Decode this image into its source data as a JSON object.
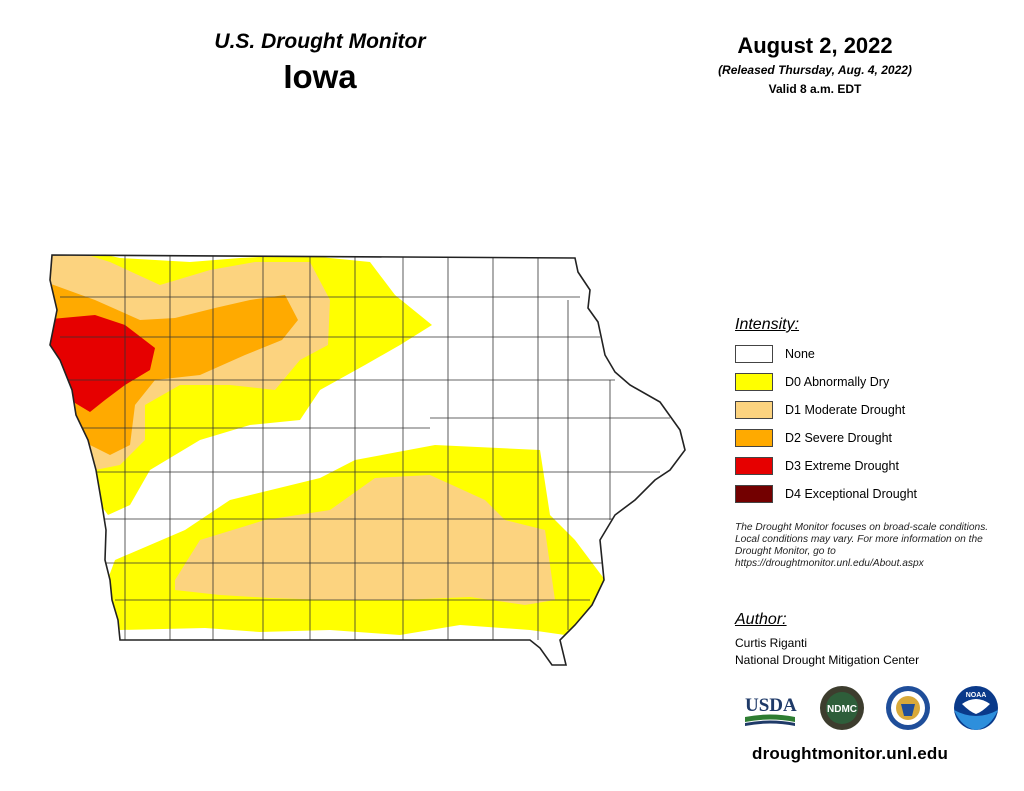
{
  "header": {
    "monitor_title": "U.S. Drought Monitor",
    "state": "Iowa",
    "date": "August 2, 2022",
    "released": "(Released Thursday, Aug. 4, 2022)",
    "valid": "Valid 8 a.m. EDT"
  },
  "legend": {
    "title": "Intensity:",
    "items": [
      {
        "label": "None",
        "color": "#ffffff"
      },
      {
        "label": "D0 Abnormally Dry",
        "color": "#ffff00"
      },
      {
        "label": "D1 Moderate Drought",
        "color": "#fcd37f"
      },
      {
        "label": "D2 Severe Drought",
        "color": "#ffaa00"
      },
      {
        "label": "D3 Extreme Drought",
        "color": "#e60000"
      },
      {
        "label": "D4 Exceptional Drought",
        "color": "#730000"
      }
    ]
  },
  "note": "The Drought Monitor focuses on broad-scale conditions. Local conditions may vary. For more information on the Drought Monitor, go to https://droughtmonitor.unl.edu/About.aspx",
  "author": {
    "title": "Author:",
    "name": "Curtis Riganti",
    "org": "National Drought Mitigation Center"
  },
  "logos": [
    {
      "name": "usda-logo",
      "text": "USDA"
    },
    {
      "name": "ndmc-logo",
      "text": "NDMC"
    },
    {
      "name": "commerce-seal-logo",
      "text": ""
    },
    {
      "name": "noaa-logo",
      "text": "NOAA"
    }
  ],
  "site": "droughtmonitor.unl.edu"
}
